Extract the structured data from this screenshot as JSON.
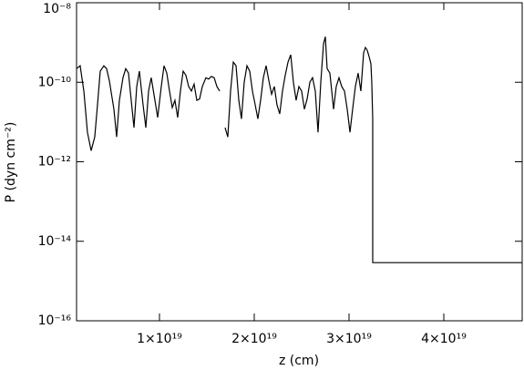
{
  "chart_data": {
    "type": "line",
    "xlabel": "z (cm)",
    "ylabel": "P (dyn cm⁻²)",
    "ylog": true,
    "grid": false,
    "color": "#000000",
    "xlim": [
      1.25e+18,
      4.827e+19
    ],
    "xticks": [
      {
        "value": 1e+19,
        "label": "1×10¹⁹"
      },
      {
        "value": 2e+19,
        "label": "2×10¹⁹"
      },
      {
        "value": 3e+19,
        "label": "3×10¹⁹"
      },
      {
        "value": 4e+19,
        "label": "4×10¹⁹"
      }
    ],
    "ylim": [
      1e-16,
      1e-08
    ],
    "yticks": [
      {
        "value": 1e-16,
        "label": "10⁻¹⁶"
      },
      {
        "value": 1e-14,
        "label": "10⁻¹⁴"
      },
      {
        "value": 1e-12,
        "label": "10⁻¹²"
      },
      {
        "value": 1e-10,
        "label": "10⁻¹⁰"
      },
      {
        "value": 1e-08,
        "label": "10⁻⁸"
      }
    ],
    "x": [
      1.25e+18,
      1.63e+18,
      2.02e+18,
      2.4e+18,
      2.79e+18,
      3.17e+18,
      3.46e+18,
      3.75e+18,
      4.13e+18,
      4.42e+18,
      4.71e+18,
      5.19e+18,
      5.48e+18,
      5.77e+18,
      6.15e+18,
      6.44e+18,
      6.73e+18,
      7.02e+18,
      7.31e+18,
      7.6e+18,
      7.88e+18,
      8.27e+18,
      8.56e+18,
      8.85e+18,
      9.13e+18,
      9.52e+18,
      9.81e+18,
      1.019e+19,
      1.048e+19,
      1.077e+19,
      1.106e+19,
      1.135e+19,
      1.163e+19,
      1.192e+19,
      1.221e+19,
      1.25e+19,
      1.279e+19,
      1.308e+19,
      1.337e+19,
      1.365e+19,
      1.394e+19,
      1.423e+19,
      1.452e+19,
      1.49e+19,
      1.519e+19,
      1.548e+19,
      1.577e+19,
      1.606e+19,
      1.635e+19,
      1.663e+19,
      1.692e+19,
      1.721e+19,
      1.75e+19,
      1.779e+19,
      1.808e+19,
      1.837e+19,
      1.865e+19,
      1.894e+19,
      1.923e+19,
      1.952e+19,
      1.981e+19,
      2.01e+19,
      2.038e+19,
      2.067e+19,
      2.096e+19,
      2.125e+19,
      2.154e+19,
      2.183e+19,
      2.212e+19,
      2.24e+19,
      2.269e+19,
      2.298e+19,
      2.327e+19,
      2.356e+19,
      2.385e+19,
      2.413e+19,
      2.442e+19,
      2.471e+19,
      2.5e+19,
      2.529e+19,
      2.558e+19,
      2.587e+19,
      2.615e+19,
      2.644e+19,
      2.673e+19,
      2.702e+19,
      2.731e+19,
      2.75e+19,
      2.769e+19,
      2.798e+19,
      2.837e+19,
      2.865e+19,
      2.894e+19,
      2.923e+19,
      2.952e+19,
      2.981e+19,
      3.01e+19,
      3.038e+19,
      3.067e+19,
      3.096e+19,
      3.125e+19,
      3.154e+19,
      3.173e+19,
      3.192e+19,
      3.212e+19,
      3.231e+19,
      3.24e+19,
      3.25e+19,
      3.25e+19,
      4.827e+19
    ],
    "values": [
      2.2e-10,
      2.6e-10,
      6e-11,
      5.5e-12,
      1.9e-12,
      4.2e-12,
      2.7e-11,
      1.9e-10,
      2.6e-10,
      2.2e-10,
      1.1e-10,
      2.1e-11,
      4.2e-12,
      3.5e-11,
      1.3e-10,
      2.2e-10,
      1.7e-10,
      3.5e-11,
      7.2e-12,
      7.8e-11,
      1.9e-10,
      2.7e-11,
      7.2e-12,
      6e-11,
      1.3e-10,
      3.5e-11,
      1.3e-11,
      7.8e-11,
      2.6e-10,
      1.7e-10,
      6e-11,
      2.3e-11,
      3.5e-11,
      1.3e-11,
      6e-11,
      1.9e-10,
      1.5e-10,
      7.8e-11,
      6e-11,
      9e-11,
      3.5e-11,
      3.8e-11,
      7.8e-11,
      1.3e-10,
      1.2e-10,
      1.4e-10,
      1.3e-10,
      7.8e-11,
      6e-11,
      null,
      7.2e-12,
      4.2e-12,
      6e-11,
      3.2e-10,
      2.6e-10,
      3.5e-11,
      1.2e-11,
      1e-10,
      2.6e-10,
      1.9e-10,
      6e-11,
      2.7e-11,
      1.2e-11,
      3.5e-11,
      1.3e-10,
      2.6e-10,
      1.1e-10,
      5e-11,
      7.8e-11,
      2.7e-11,
      1.6e-11,
      6e-11,
      1.5e-10,
      3.2e-10,
      4.9e-10,
      1e-10,
      3.5e-11,
      7.8e-11,
      6e-11,
      2.1e-11,
      3.8e-11,
      1e-10,
      1.3e-10,
      6e-11,
      5.5e-12,
      1e-10,
      9.3e-10,
      1.4e-09,
      2.2e-10,
      1.7e-10,
      2.1e-11,
      7.8e-11,
      1.3e-10,
      7.8e-11,
      6e-11,
      2.1e-11,
      5.5e-12,
      2.1e-11,
      7.8e-11,
      1.7e-10,
      6e-11,
      5.5e-10,
      7.5e-10,
      6.4e-10,
      4.4e-10,
      2.9e-10,
      1e-10,
      1.2e-11,
      2.9e-15,
      2.9e-15
    ]
  }
}
